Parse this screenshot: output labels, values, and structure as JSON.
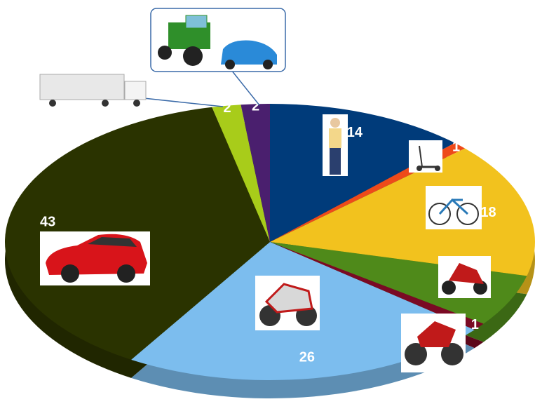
{
  "chart_data": {
    "type": "pie3d",
    "values": [
      14,
      1,
      18,
      7,
      1,
      26,
      43,
      2,
      2
    ],
    "colors": [
      "#003b7a",
      "#ee4a1a",
      "#f2c21e",
      "#4f8a1a",
      "#7a0a24",
      "#7cbdee",
      "#2a3300",
      "#a8cc1a",
      "#4a1f6e"
    ]
  }
}
